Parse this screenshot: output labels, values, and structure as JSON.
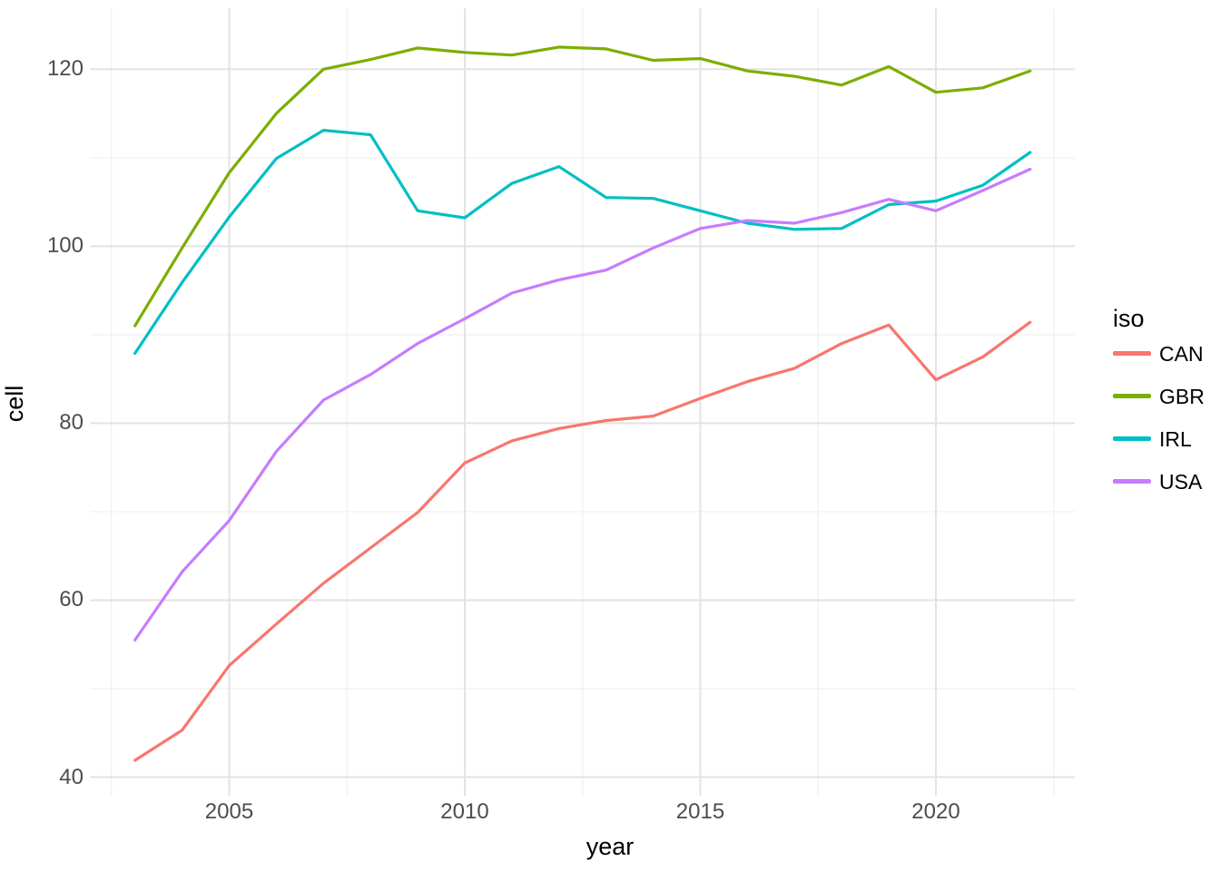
{
  "figure": {
    "background": "#ffffff",
    "grid_major_color": "#e3e3e3",
    "grid_minor_color": "#f2f2f2",
    "tick_text_color": "#4d4d4d",
    "axis_title_color": "#000000"
  },
  "chart_data": {
    "type": "line",
    "title": "",
    "xlabel": "year",
    "ylabel": "cell",
    "legend_title": "iso",
    "legend_position": "right",
    "grid": true,
    "x": [
      2003,
      2004,
      2005,
      2006,
      2007,
      2008,
      2009,
      2010,
      2011,
      2012,
      2013,
      2014,
      2015,
      2016,
      2017,
      2018,
      2019,
      2020,
      2021,
      2022
    ],
    "series": [
      {
        "name": "CAN",
        "color": "#F8766D",
        "values": [
          41.9,
          45.3,
          52.6,
          57.3,
          61.9,
          65.9,
          69.9,
          75.5,
          78.0,
          79.4,
          80.3,
          80.8,
          82.8,
          84.7,
          86.2,
          89.0,
          91.1,
          84.9,
          87.5,
          91.4
        ]
      },
      {
        "name": "GBR",
        "color": "#7CAE00",
        "values": [
          91.0,
          99.8,
          108.3,
          115.0,
          120.0,
          121.1,
          122.4,
          121.9,
          121.6,
          122.5,
          122.3,
          121.0,
          121.2,
          119.8,
          119.2,
          118.2,
          120.3,
          117.4,
          117.9,
          119.8
        ]
      },
      {
        "name": "IRL",
        "color": "#00BFC4",
        "values": [
          87.9,
          95.9,
          103.3,
          109.9,
          113.1,
          112.6,
          104.0,
          103.2,
          107.1,
          109.0,
          105.5,
          105.4,
          104.0,
          102.6,
          101.9,
          102.0,
          104.7,
          105.1,
          106.9,
          110.6
        ]
      },
      {
        "name": "USA",
        "color": "#C77CFF",
        "values": [
          55.5,
          63.2,
          69.0,
          76.8,
          82.6,
          85.5,
          89.0,
          91.8,
          94.7,
          96.2,
          97.3,
          99.8,
          102.0,
          102.9,
          102.6,
          103.8,
          105.3,
          104.0,
          106.3,
          108.7
        ]
      }
    ],
    "x_ticks": [
      2005,
      2010,
      2015,
      2020
    ],
    "y_ticks": [
      40,
      60,
      80,
      100,
      120
    ],
    "x_minor": [
      2002.5,
      2007.5,
      2012.5,
      2017.5,
      2022.5
    ],
    "y_minor": [
      50,
      70,
      90,
      110
    ],
    "xlim": [
      2002.05,
      2022.95
    ],
    "ylim": [
      37.9,
      126.9
    ]
  },
  "legend": {
    "title": "iso",
    "entries": [
      {
        "label": "CAN",
        "color": "#F8766D"
      },
      {
        "label": "GBR",
        "color": "#7CAE00"
      },
      {
        "label": "IRL",
        "color": "#00BFC4"
      },
      {
        "label": "USA",
        "color": "#C77CFF"
      }
    ]
  }
}
